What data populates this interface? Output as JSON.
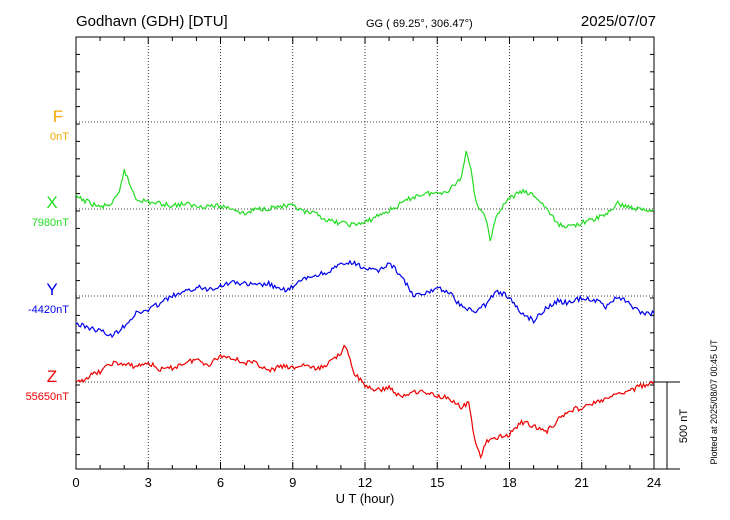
{
  "header": {
    "station": "Godhavn (GDH)  [DTU]",
    "coords": "GG ( 69.25°, 306.47°)",
    "date": "2025/07/07"
  },
  "footer": {
    "plotted_note": "Plotted at 2025/08/07 00:45 UT"
  },
  "colors": {
    "F": "#f0a800",
    "X": "#22dd22",
    "Y": "#0000ee",
    "Z": "#ee0000",
    "axis": "#000000"
  },
  "chart_data": {
    "type": "line",
    "xlabel": "U T (hour)",
    "xlim": [
      0,
      24
    ],
    "x_ticks": [
      "0",
      "3",
      "6",
      "9",
      "12",
      "15",
      "18",
      "21",
      "24"
    ],
    "scale_bar": {
      "label": "500 nT",
      "value_nT": 500
    },
    "series": [
      {
        "name": "F",
        "baseline_label": "0nT",
        "baseline_nT": 0,
        "x": [],
        "values": []
      },
      {
        "name": "X",
        "baseline_label": "7980nT",
        "baseline_nT": 7980,
        "x": [
          0,
          0.5,
          1,
          1.5,
          1.8,
          2.0,
          2.2,
          2.5,
          3,
          3.5,
          4,
          4.5,
          5,
          5.5,
          6,
          6.5,
          7,
          7.5,
          8,
          8.5,
          9,
          9.5,
          10,
          10.5,
          11,
          11.5,
          12,
          12.5,
          13,
          13.5,
          14,
          14.5,
          15,
          15.5,
          16,
          16.2,
          16.4,
          16.6,
          17,
          17.2,
          17.5,
          18,
          18.5,
          19,
          19.5,
          20,
          20.5,
          21,
          21.5,
          22,
          22.5,
          23,
          23.5,
          24
        ],
        "values": [
          8050,
          8020,
          7990,
          8010,
          8070,
          8210,
          8130,
          8040,
          8020,
          8010,
          8000,
          8010,
          7995,
          8000,
          7995,
          7985,
          7950,
          7980,
          7985,
          7995,
          7995,
          7960,
          7950,
          7910,
          7900,
          7890,
          7900,
          7940,
          7970,
          8010,
          8050,
          8070,
          8070,
          8090,
          8160,
          8310,
          8220,
          8020,
          7940,
          7790,
          7960,
          8040,
          8080,
          8060,
          7990,
          7890,
          7880,
          7900,
          7920,
          7950,
          8010,
          7990,
          7975,
          7975
        ]
      },
      {
        "name": "Y",
        "baseline_label": "-4420nT",
        "baseline_nT": -4420,
        "x": [
          0,
          0.5,
          1,
          1.5,
          2,
          2.5,
          3,
          3.5,
          4,
          4.5,
          5,
          5.5,
          6,
          6.5,
          7,
          7.5,
          8,
          8.5,
          9,
          9.5,
          10,
          10.5,
          11,
          11.5,
          12,
          12.5,
          13,
          13.5,
          14,
          14.5,
          15,
          15.5,
          16,
          16.5,
          17,
          17.5,
          18,
          18.5,
          19,
          19.5,
          20,
          20.5,
          21,
          21.5,
          22,
          22.5,
          23,
          23.5,
          24
        ],
        "values": [
          -4580,
          -4600,
          -4620,
          -4650,
          -4590,
          -4520,
          -4500,
          -4460,
          -4420,
          -4400,
          -4370,
          -4380,
          -4360,
          -4340,
          -4350,
          -4360,
          -4350,
          -4390,
          -4370,
          -4320,
          -4300,
          -4280,
          -4240,
          -4230,
          -4260,
          -4280,
          -4230,
          -4300,
          -4420,
          -4410,
          -4370,
          -4400,
          -4480,
          -4510,
          -4470,
          -4390,
          -4430,
          -4520,
          -4560,
          -4490,
          -4450,
          -4460,
          -4430,
          -4440,
          -4480,
          -4420,
          -4470,
          -4520,
          -4520
        ]
      },
      {
        "name": "Z",
        "baseline_label": "55650nT",
        "baseline_nT": 55650,
        "x": [
          0,
          0.5,
          1,
          1.5,
          2,
          2.5,
          3,
          3.5,
          4,
          4.5,
          5,
          5.5,
          6,
          6.5,
          7,
          7.5,
          8,
          8.5,
          9,
          9.5,
          10,
          10.5,
          11,
          11.2,
          11.5,
          12,
          12.5,
          13,
          13.5,
          14,
          14.5,
          15,
          15.5,
          16,
          16.3,
          16.6,
          16.8,
          17,
          17.5,
          18,
          18.5,
          19,
          19.5,
          20,
          20.5,
          21,
          21.5,
          22,
          22.5,
          23,
          23.5,
          24
        ],
        "values": [
          55640,
          55680,
          55710,
          55760,
          55750,
          55740,
          55760,
          55720,
          55730,
          55760,
          55780,
          55750,
          55800,
          55790,
          55760,
          55760,
          55710,
          55740,
          55730,
          55750,
          55720,
          55760,
          55820,
          55860,
          55710,
          55630,
          55600,
          55620,
          55560,
          55600,
          55590,
          55570,
          55560,
          55500,
          55530,
          55290,
          55220,
          55300,
          55330,
          55350,
          55420,
          55400,
          55360,
          55430,
          55490,
          55500,
          55530,
          55550,
          55580,
          55600,
          55630,
          55650
        ]
      }
    ]
  }
}
